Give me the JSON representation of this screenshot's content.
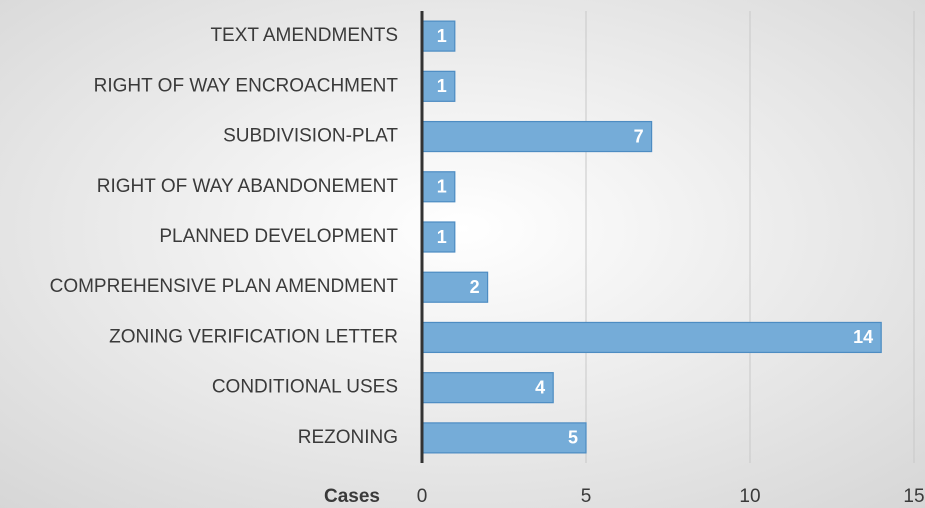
{
  "chart_data": {
    "type": "bar",
    "categories": [
      "TEXT AMENDMENTS",
      "RIGHT OF WAY ENCROACHMENT",
      "SUBDIVISION-PLAT",
      "RIGHT OF WAY ABANDONEMENT",
      "PLANNED DEVELOPMENT",
      "COMPREHENSIVE PLAN AMENDMENT",
      "ZONING VERIFICATION LETTER",
      "CONDITIONAL USES",
      "REZONING"
    ],
    "values": [
      1,
      1,
      7,
      1,
      1,
      2,
      14,
      4,
      5
    ],
    "color": "#75acd8",
    "xlabel": "Cases",
    "xlim": [
      0,
      15
    ],
    "xticks": [
      0,
      5,
      10,
      15
    ],
    "grid": true
  }
}
